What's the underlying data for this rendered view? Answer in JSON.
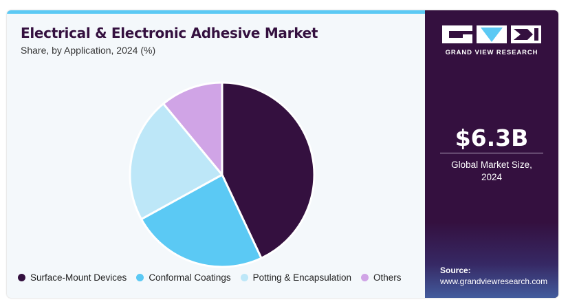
{
  "colors": {
    "accent_bar": "#5bc9f4",
    "panel_bg": "#34103f",
    "title": "#34103f"
  },
  "chart_data": {
    "type": "pie",
    "title": "Electrical & Electronic Adhesive Market",
    "subtitle": "Share, by Application, 2024 (%)",
    "legend_position": "bottom",
    "categories": [
      "Surface-Mount Devices",
      "Conformal Coatings",
      "Potting & Encapsulation",
      "Others"
    ],
    "values": [
      43,
      24,
      22,
      11
    ],
    "colors": [
      "#34103f",
      "#5bc9f4",
      "#bde7f8",
      "#d0a4e6"
    ]
  },
  "sidebar": {
    "logo_icon": "gvr-logo-icon",
    "logo_text": "GRAND VIEW RESEARCH",
    "market_size": "$6.3B",
    "market_size_label_line1": "Global Market Size,",
    "market_size_label_line2": "2024",
    "source_label": "Source:",
    "source_url": "www.grandviewresearch.com"
  }
}
